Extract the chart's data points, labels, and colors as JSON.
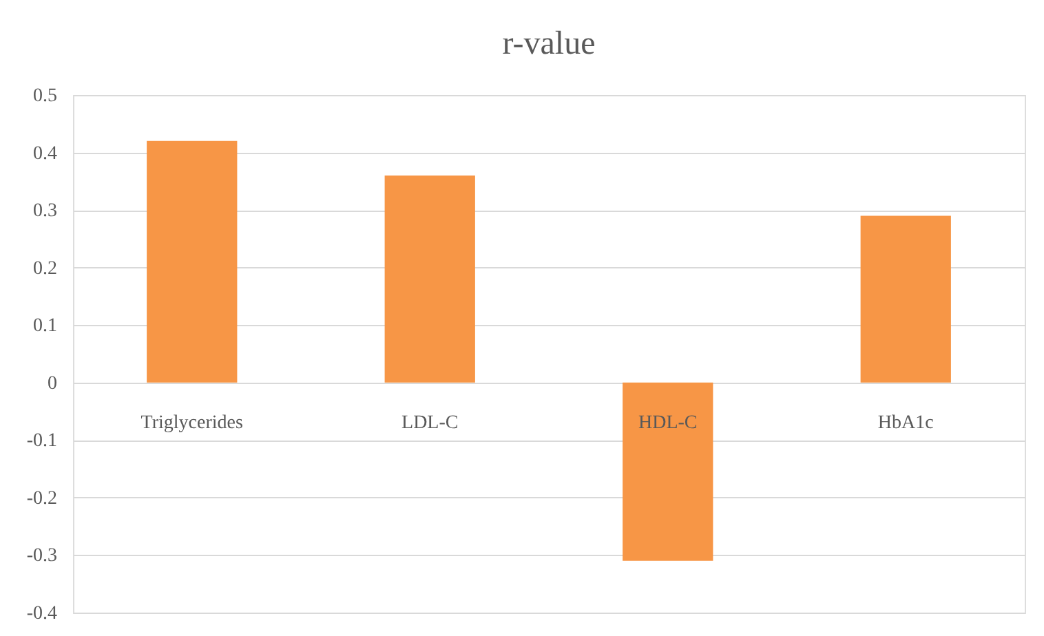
{
  "chart_data": {
    "type": "bar",
    "title": "r-value",
    "categories": [
      "Triglycerides",
      "LDL-C",
      "HDL-C",
      "HbA1c"
    ],
    "values": [
      0.42,
      0.36,
      -0.31,
      0.29
    ],
    "color": "#f79646",
    "ylim": [
      -0.4,
      0.5
    ],
    "yticks": [
      -0.4,
      -0.3,
      -0.2,
      -0.1,
      0,
      0.1,
      0.2,
      0.3,
      0.4,
      0.5
    ],
    "grid": "y"
  }
}
